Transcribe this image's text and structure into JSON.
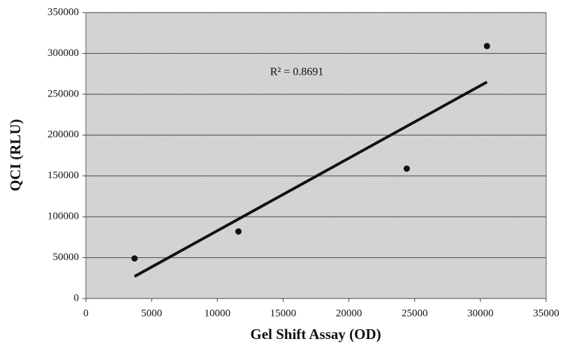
{
  "chart_data": {
    "type": "scatter",
    "x_label": "Gel Shift Assay (OD)",
    "y_label": "QCI (RLU)",
    "annotation": "R² = 0.8691",
    "series": [
      {
        "color": "#111111",
        "x": [
          3700,
          11600,
          24400,
          30500
        ],
        "values": [
          49000,
          82000,
          159000,
          309000
        ]
      }
    ],
    "trendline": {
      "color": "#111111",
      "x": [
        3700,
        30500
      ],
      "values": [
        27000,
        265000
      ]
    },
    "xlim": [
      0,
      35000
    ],
    "xticks": [
      0,
      5000,
      10000,
      15000,
      20000,
      25000,
      30000,
      35000
    ],
    "ylim": [
      0,
      350000
    ],
    "yticks": [
      0,
      50000,
      100000,
      150000,
      200000,
      250000,
      300000,
      350000
    ],
    "grid": true
  }
}
